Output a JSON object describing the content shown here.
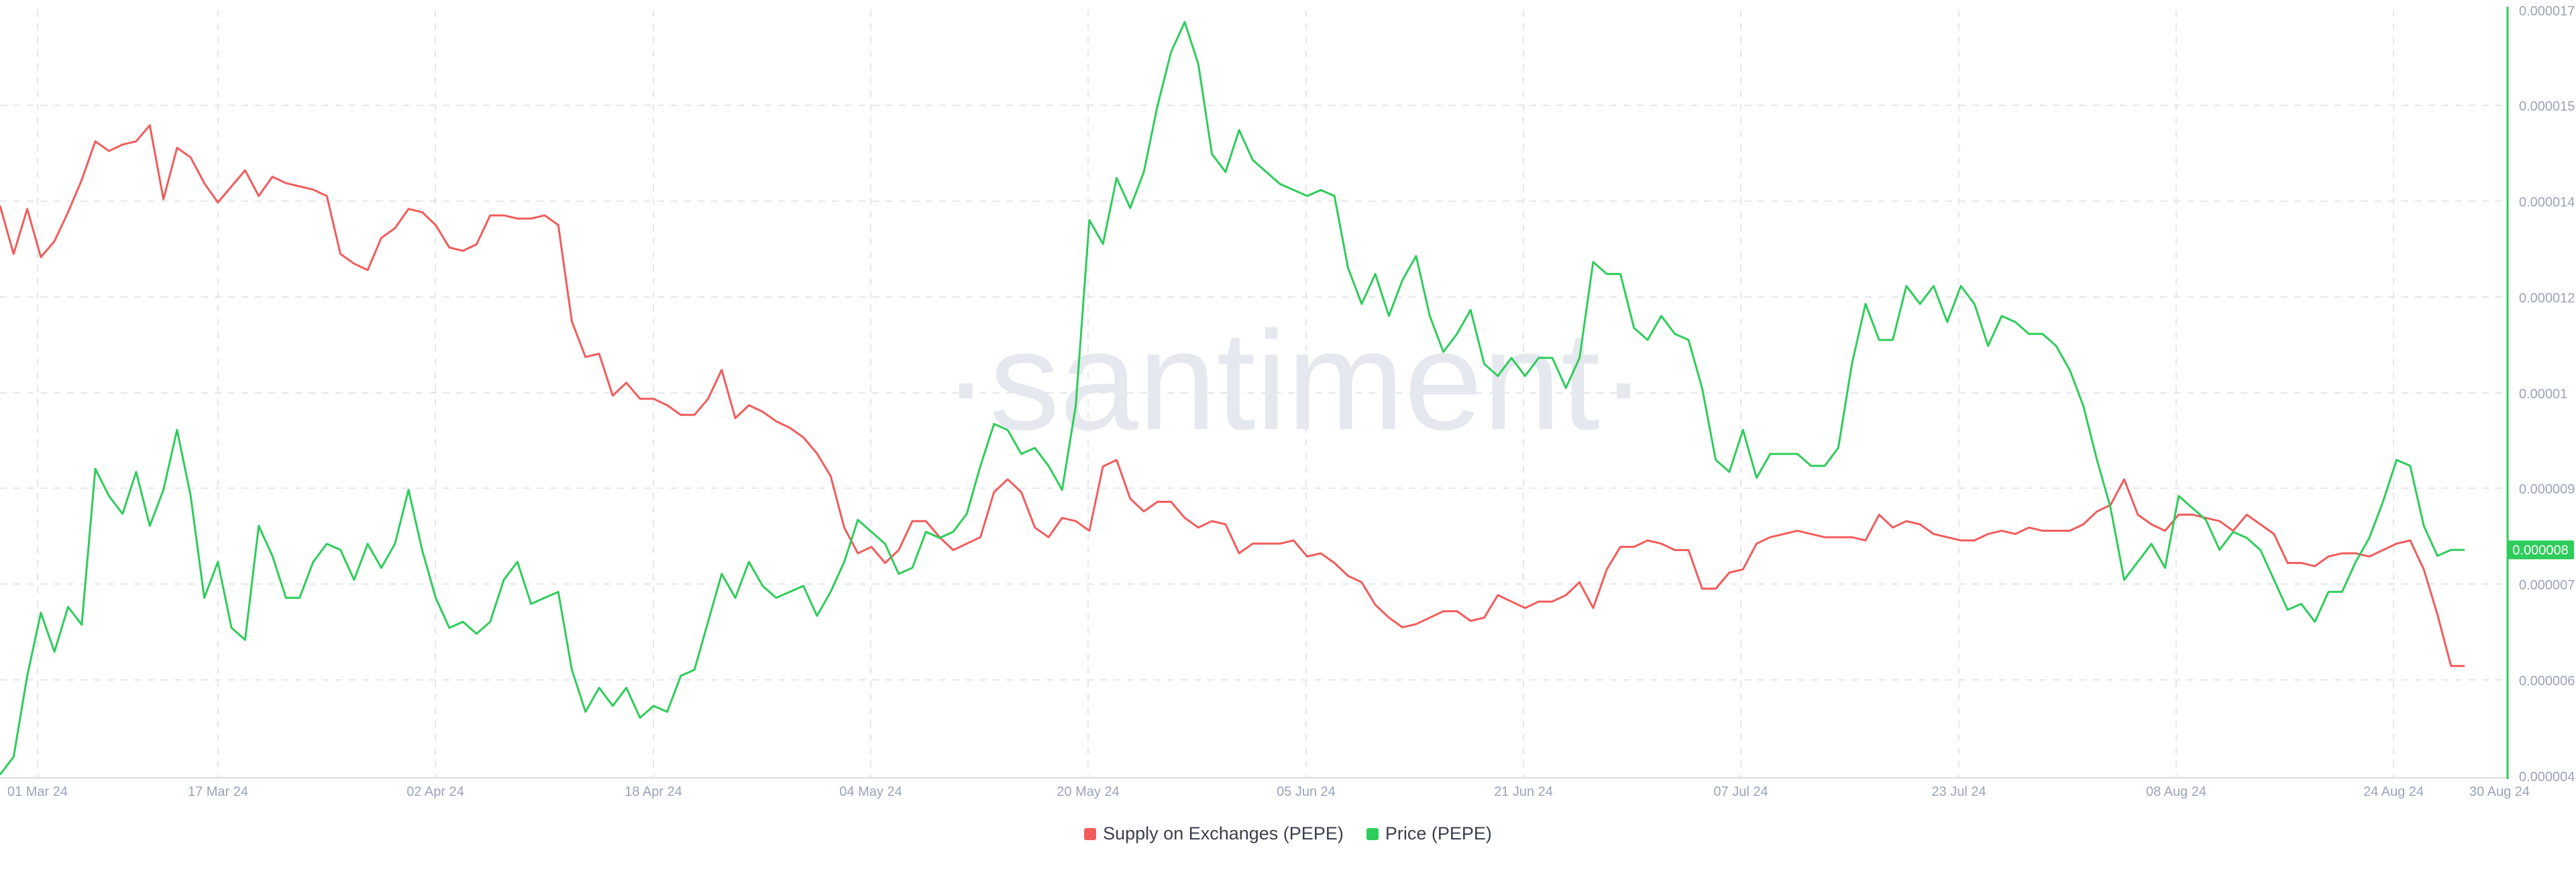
{
  "colors": {
    "supply": "#f25b5b",
    "price": "#2ecc5a",
    "grid": "#e4e6ec",
    "tick_text": "#9aa3b8",
    "watermark": "#e6e8f0",
    "axis_line": "#2ecc5a"
  },
  "watermark": "·santiment·",
  "chart_data": {
    "type": "line",
    "title": "",
    "xlabel": "",
    "ylabel": "",
    "x_tick_labels": [
      "01 Mar 24",
      "17 Mar 24",
      "02 Apr 24",
      "18 Apr 24",
      "04 May 24",
      "20 May 24",
      "05 Jun 24",
      "21 Jun 24",
      "07 Jul 24",
      "23 Jul 24",
      "08 Aug 24",
      "24 Aug 24",
      "30 Aug 24"
    ],
    "right_axis": {
      "tick_labels": [
        "0.000017",
        "0.000015",
        "0.000014",
        "0.000012",
        "0.00001",
        "0.000009",
        "0.000007",
        "0.000006",
        "0.000004"
      ],
      "ylim": [
        4.2e-06,
        1.7e-05
      ],
      "current_value_label": "0.000008"
    },
    "grid": true,
    "legend_position": "bottom-center",
    "series": [
      {
        "name": "Supply on Exchanges (PEPE)",
        "color": "#f25b5b",
        "axis": "left-hidden",
        "ylim": [
          0,
          100
        ],
        "values": [
          79.5,
          72,
          79,
          71.5,
          74,
          78.5,
          83.5,
          89.5,
          88,
          89,
          89.5,
          92,
          80.5,
          88.5,
          87,
          83,
          80,
          82.5,
          85,
          81,
          84,
          83,
          82.5,
          82,
          81,
          72,
          70.5,
          69.5,
          74.5,
          76,
          79,
          78.5,
          76.5,
          73,
          72.5,
          73.5,
          78,
          78,
          77.5,
          77.5,
          78,
          76.5,
          61.5,
          56,
          56.5,
          50,
          52,
          49.5,
          49.5,
          48.5,
          47,
          47,
          49.5,
          54,
          46.5,
          48.5,
          47.5,
          46,
          45,
          43.5,
          41,
          37.5,
          29.5,
          25.5,
          26.5,
          24,
          26,
          30.5,
          30.5,
          28,
          26,
          27,
          28,
          35,
          37,
          35,
          29.5,
          28,
          31,
          30.5,
          29,
          39,
          40,
          34,
          32,
          33.5,
          33.5,
          31,
          29.5,
          30.5,
          30,
          25.5,
          27,
          27,
          27,
          27.5,
          25,
          25.5,
          24,
          22,
          21,
          17.5,
          15.5,
          14,
          14.5,
          15.5,
          16.5,
          16.5,
          15,
          15.5,
          19,
          18,
          17,
          18,
          18,
          19,
          21,
          17,
          23,
          26.5,
          26.5,
          27.5,
          27,
          26,
          26,
          20,
          20,
          22.5,
          23,
          27,
          28,
          28.5,
          29,
          28.5,
          28,
          28,
          28,
          27.5,
          31.5,
          29.5,
          30.5,
          30,
          28.5,
          28,
          27.5,
          27.5,
          28.5,
          29,
          28.5,
          29.5,
          29,
          29,
          29,
          30,
          32,
          33,
          37,
          31.5,
          30,
          29,
          31.5,
          31.5,
          31,
          30.5,
          29,
          31.5,
          30,
          28.5,
          24,
          24,
          23.5,
          25,
          25.5,
          25.5,
          25,
          26,
          27,
          27.5,
          23,
          16,
          8,
          8
        ]
      },
      {
        "name": "Price (PEPE)",
        "color": "#2ecc5a",
        "axis": "right",
        "values": [
          4.25e-06,
          4.55e-06,
          5.9e-06,
          6.95e-06,
          6.3e-06,
          7.05e-06,
          6.75e-06,
          9.35e-06,
          8.9e-06,
          8.6e-06,
          9.3e-06,
          8.4e-06,
          9e-06,
          1e-05,
          8.9e-06,
          7.2e-06,
          7.8e-06,
          6.7e-06,
          6.5e-06,
          8.4e-06,
          7.9e-06,
          7.2e-06,
          7.2e-06,
          7.8e-06,
          8.1e-06,
          8e-06,
          7.5e-06,
          8.1e-06,
          7.7e-06,
          8.1e-06,
          9e-06,
          8e-06,
          7.2e-06,
          6.7e-06,
          6.8e-06,
          6.6e-06,
          6.8e-06,
          7.5e-06,
          7.8e-06,
          7.1e-06,
          7.2e-06,
          7.3e-06,
          6e-06,
          5.3e-06,
          5.7e-06,
          5.4e-06,
          5.7e-06,
          5.2e-06,
          5.4e-06,
          5.3e-06,
          5.9e-06,
          6e-06,
          6.8e-06,
          7.6e-06,
          7.2e-06,
          7.8e-06,
          7.4e-06,
          7.2e-06,
          7.3e-06,
          7.4e-06,
          6.9e-06,
          7.3e-06,
          7.8e-06,
          8.5e-06,
          8.3e-06,
          8.1e-06,
          7.6e-06,
          7.7e-06,
          8.3e-06,
          8.2e-06,
          8.3e-06,
          8.6e-06,
          9.4e-06,
          1.01e-05,
          1e-05,
          9.6e-06,
          9.7e-06,
          9.4e-06,
          9e-06,
          1.04e-05,
          1.35e-05,
          1.31e-05,
          1.42e-05,
          1.37e-05,
          1.43e-05,
          1.54e-05,
          1.63e-05,
          1.68e-05,
          1.61e-05,
          1.46e-05,
          1.43e-05,
          1.5e-05,
          1.45e-05,
          1.43e-05,
          1.41e-05,
          1.4e-05,
          1.39e-05,
          1.4e-05,
          1.39e-05,
          1.27e-05,
          1.21e-05,
          1.26e-05,
          1.19e-05,
          1.25e-05,
          1.29e-05,
          1.19e-05,
          1.13e-05,
          1.16e-05,
          1.2e-05,
          1.11e-05,
          1.09e-05,
          1.12e-05,
          1.09e-05,
          1.12e-05,
          1.12e-05,
          1.07e-05,
          1.12e-05,
          1.28e-05,
          1.26e-05,
          1.26e-05,
          1.17e-05,
          1.15e-05,
          1.19e-05,
          1.16e-05,
          1.15e-05,
          1.07e-05,
          9.5e-06,
          9.3e-06,
          1e-05,
          9.2e-06,
          9.6e-06,
          9.6e-06,
          9.6e-06,
          9.4e-06,
          9.4e-06,
          9.7e-06,
          1.11e-05,
          1.21e-05,
          1.15e-05,
          1.15e-05,
          1.24e-05,
          1.21e-05,
          1.24e-05,
          1.18e-05,
          1.24e-05,
          1.21e-05,
          1.14e-05,
          1.19e-05,
          1.18e-05,
          1.16e-05,
          1.16e-05,
          1.14e-05,
          1.1e-05,
          1.04e-05,
          9.5e-06,
          8.7e-06,
          7.5e-06,
          7.8e-06,
          8.1e-06,
          7.7e-06,
          8.9e-06,
          8.7e-06,
          8.5e-06,
          8e-06,
          8.3e-06,
          8.2e-06,
          8e-06,
          7.5e-06,
          7e-06,
          7.1e-06,
          6.8e-06,
          7.3e-06,
          7.3e-06,
          7.8e-06,
          8.2e-06,
          8.8e-06,
          9.5e-06,
          9.4e-06,
          8.4e-06,
          7.9e-06,
          8e-06,
          8e-06
        ]
      }
    ]
  },
  "legend": {
    "items": [
      {
        "label": "Supply on Exchanges (PEPE)",
        "color": "#f25b5b"
      },
      {
        "label": "Price (PEPE)",
        "color": "#2ecc5a"
      }
    ]
  }
}
